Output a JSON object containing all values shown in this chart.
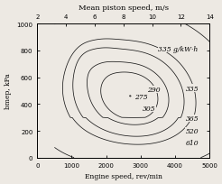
{
  "title_top": "Mean piston speed, m/s",
  "xlabel": "Engine speed, rev/min",
  "ylabel": "bmep, kPa",
  "xmin": 0,
  "xmax": 5000,
  "ymin": 0,
  "ymax": 1000,
  "top_xmin": 2,
  "top_xmax": 14,
  "label_335_gkwh": "335 g/kW·h",
  "background_color": "#ede9e3",
  "line_color": "#1a1a1a",
  "font_size_labels": 5.5,
  "font_size_axis": 5.5,
  "font_size_title": 6.0
}
